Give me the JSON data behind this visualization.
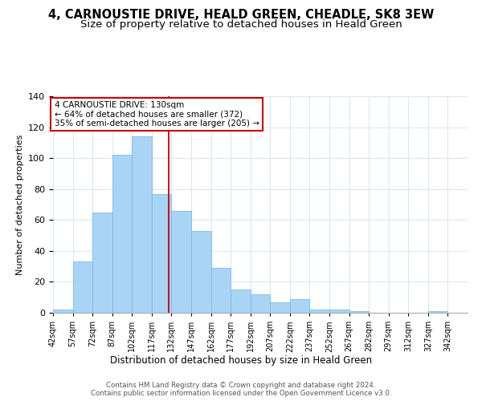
{
  "title": "4, CARNOUSTIE DRIVE, HEALD GREEN, CHEADLE, SK8 3EW",
  "subtitle": "Size of property relative to detached houses in Heald Green",
  "xlabel": "Distribution of detached houses by size in Heald Green",
  "ylabel": "Number of detached properties",
  "bar_color": "#aad4f5",
  "bar_edge_color": "#7ab8e8",
  "bins": [
    42,
    57,
    72,
    87,
    102,
    117,
    132,
    147,
    162,
    177,
    192,
    207,
    222,
    237,
    252,
    267,
    282,
    297,
    312,
    327,
    342
  ],
  "heights": [
    2,
    33,
    65,
    102,
    114,
    77,
    66,
    53,
    29,
    15,
    12,
    7,
    9,
    2,
    2,
    1,
    0,
    0,
    0,
    1
  ],
  "tick_labels": [
    "42sqm",
    "57sqm",
    "72sqm",
    "87sqm",
    "102sqm",
    "117sqm",
    "132sqm",
    "147sqm",
    "162sqm",
    "177sqm",
    "192sqm",
    "207sqm",
    "222sqm",
    "237sqm",
    "252sqm",
    "267sqm",
    "282sqm",
    "297sqm",
    "312sqm",
    "327sqm",
    "342sqm"
  ],
  "vline_x": 130,
  "ylim": [
    0,
    140
  ],
  "yticks": [
    0,
    20,
    40,
    60,
    80,
    100,
    120,
    140
  ],
  "annotation_title": "4 CARNOUSTIE DRIVE: 130sqm",
  "annotation_line1": "← 64% of detached houses are smaller (372)",
  "annotation_line2": "35% of semi-detached houses are larger (205) →",
  "annotation_box_color": "#ffffff",
  "annotation_border_color": "#cc0000",
  "vline_color": "#cc0000",
  "footer1": "Contains HM Land Registry data © Crown copyright and database right 2024.",
  "footer2": "Contains public sector information licensed under the Open Government Licence v3.0.",
  "grid_color": "#d8e8f0",
  "title_fontsize": 10.5,
  "subtitle_fontsize": 9.5
}
